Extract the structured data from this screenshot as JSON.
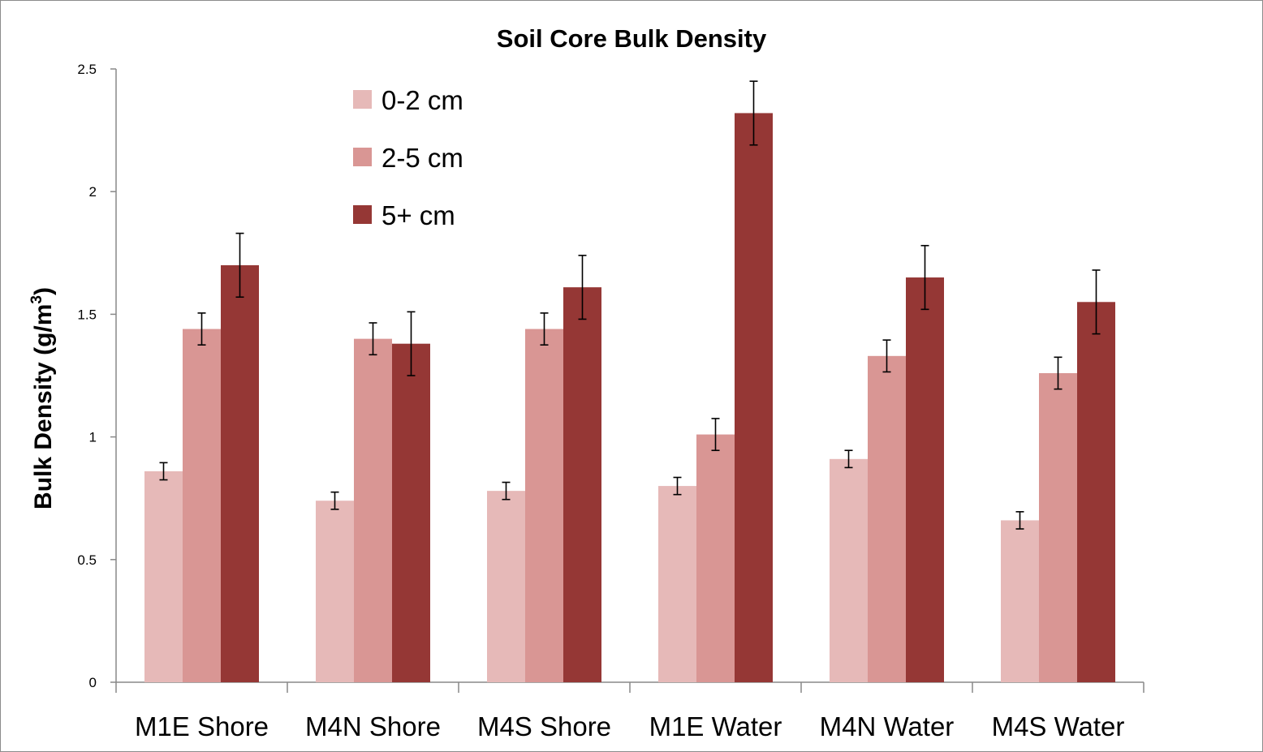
{
  "chart_data": {
    "type": "bar",
    "title": "Soil Core Bulk Density",
    "ylabel": "Bulk Density  (g/m",
    "ylabel_superscript": "3",
    "ylabel_close": ")",
    "xlabel": "",
    "ylim": [
      0,
      2.5
    ],
    "yticks": [
      0,
      0.5,
      1,
      1.5,
      2,
      2.5
    ],
    "ytick_labels": [
      "0",
      "0.5",
      "1",
      "1.5",
      "2",
      "2.5"
    ],
    "categories": [
      "M1E Shore",
      "M4N Shore",
      "M4S Shore",
      "M1E Water",
      "M4N Water",
      "M4S Water"
    ],
    "series": [
      {
        "name": "0-2 cm",
        "color": "#e6b9b8",
        "values": [
          0.86,
          0.74,
          0.78,
          0.8,
          0.91,
          0.66
        ],
        "errors": [
          0.035,
          0.035,
          0.035,
          0.035,
          0.035,
          0.035
        ]
      },
      {
        "name": "2-5 cm",
        "color": "#d99694",
        "values": [
          1.44,
          1.4,
          1.44,
          1.01,
          1.33,
          1.26
        ],
        "errors": [
          0.065,
          0.065,
          0.065,
          0.065,
          0.065,
          0.065
        ]
      },
      {
        "name": "5+ cm",
        "color": "#953735",
        "values": [
          1.7,
          1.38,
          1.61,
          2.32,
          1.65,
          1.55
        ],
        "errors": [
          0.13,
          0.13,
          0.13,
          0.13,
          0.13,
          0.13
        ]
      }
    ],
    "legend": {
      "position": "top-left-inside"
    },
    "grid": false
  }
}
